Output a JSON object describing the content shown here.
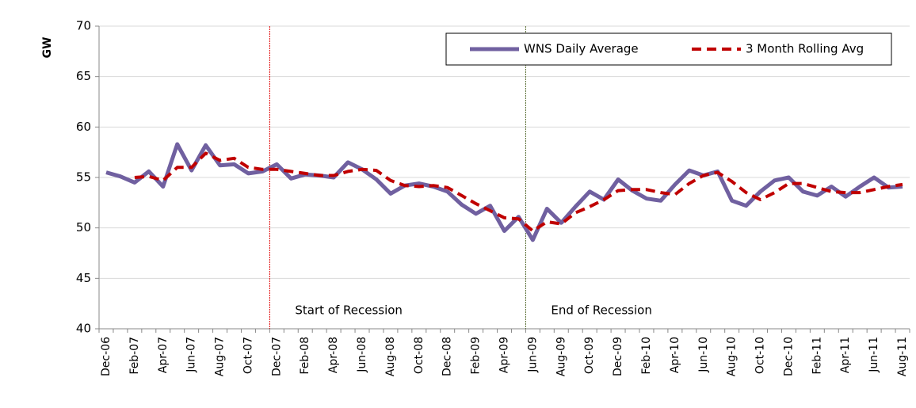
{
  "chart_data": {
    "type": "line",
    "y_label": "GW",
    "categories": [
      "Dec-06",
      null,
      "Feb-07",
      null,
      "Apr-07",
      null,
      "Jun-07",
      null,
      "Aug-07",
      null,
      "Oct-07",
      null,
      "Dec-07",
      null,
      "Feb-08",
      null,
      "Apr-08",
      null,
      "Jun-08",
      null,
      "Aug-08",
      null,
      "Oct-08",
      null,
      "Dec-08",
      null,
      "Feb-09",
      null,
      "Apr-09",
      null,
      "Jun-09",
      null,
      "Aug-09",
      null,
      "Oct-09",
      null,
      "Dec-09",
      null,
      "Feb-10",
      null,
      "Apr-10",
      null,
      "Jun-10",
      null,
      "Aug-10",
      null,
      "Oct-10",
      null,
      "Dec-10",
      null,
      "Feb-11",
      null,
      "Apr-11",
      null,
      "Jun-11",
      null,
      "Aug-11"
    ],
    "series": [
      {
        "name": "WNS Daily Average",
        "color": "#7060a0",
        "dash": false,
        "values": [
          55.5,
          55.1,
          54.5,
          55.6,
          54.1,
          58.3,
          55.7,
          58.2,
          56.2,
          56.3,
          55.4,
          55.6,
          56.3,
          54.9,
          55.3,
          55.2,
          55.0,
          56.5,
          55.8,
          54.8,
          53.4,
          54.2,
          54.4,
          54.1,
          53.6,
          52.3,
          51.4,
          52.2,
          49.7,
          51.1,
          48.8,
          51.9,
          50.5,
          52.1,
          53.6,
          52.8,
          54.8,
          53.7,
          52.9,
          52.7,
          54.3,
          55.7,
          55.2,
          55.6,
          52.7,
          52.2,
          53.6,
          54.7,
          55.0,
          53.6,
          53.2,
          54.1,
          53.1,
          54.1,
          55.0,
          54.0,
          54.1
        ]
      },
      {
        "name": "3 Month Rolling Avg",
        "color": "#c00000",
        "dash": true,
        "values": [
          null,
          null,
          55.0,
          55.1,
          54.7,
          56.0,
          56.0,
          57.4,
          56.7,
          56.9,
          56.0,
          55.8,
          55.8,
          55.6,
          55.4,
          55.2,
          55.2,
          55.6,
          55.8,
          55.7,
          54.7,
          54.2,
          54.1,
          54.2,
          54.0,
          53.2,
          52.4,
          51.7,
          51.0,
          50.9,
          49.7,
          50.6,
          50.4,
          51.5,
          52.1,
          52.8,
          53.7,
          53.8,
          53.8,
          53.5,
          53.3,
          54.4,
          55.2,
          55.5,
          54.6,
          53.5,
          52.8,
          53.5,
          54.4,
          54.4,
          54.0,
          53.6,
          53.5,
          53.5,
          53.8,
          54.1,
          54.3
        ]
      }
    ],
    "annotations": [
      {
        "text": "Start of Recession",
        "category": "Dec-07",
        "color": "#e00000"
      },
      {
        "text": "End of Recession",
        "category": "Jun-09",
        "color": "#556b2f"
      }
    ],
    "ylim": [
      40,
      70
    ],
    "yticks": [
      40,
      45,
      50,
      55,
      60,
      65,
      70
    ],
    "grid": true,
    "legend": "top-right"
  }
}
